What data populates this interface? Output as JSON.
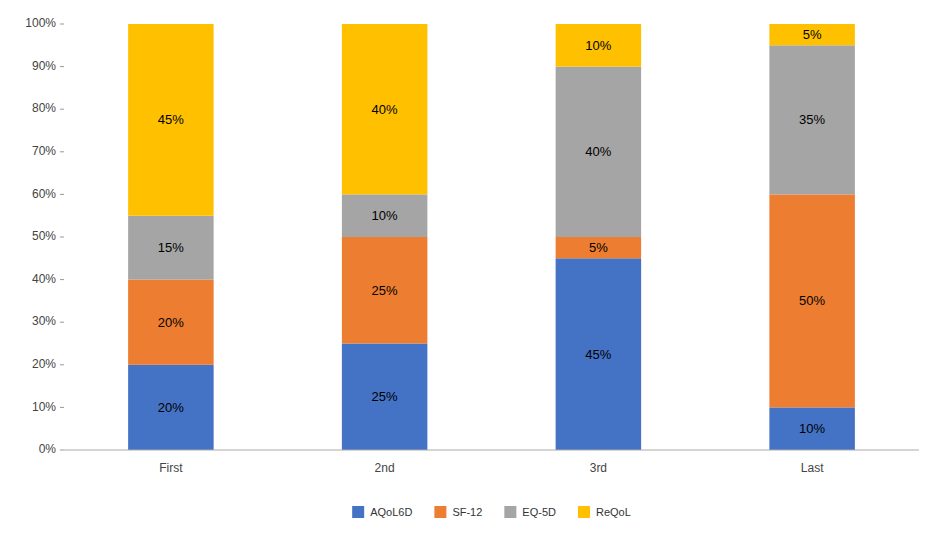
{
  "chart_data": {
    "type": "bar",
    "stacked": true,
    "data_labels": true,
    "grid": false,
    "legend": "bottom",
    "categories": [
      "First",
      "2nd",
      "3rd",
      "Last"
    ],
    "series": [
      {
        "name": "AQoL6D",
        "color": "#4472C4",
        "values": [
          20,
          25,
          45,
          10
        ],
        "value_labels": [
          "20%",
          "25%",
          "45%",
          "10%"
        ]
      },
      {
        "name": "SF-12",
        "color": "#ED7D31",
        "values": [
          20,
          25,
          5,
          50
        ],
        "value_labels": [
          "20%",
          "25%",
          "5%",
          "50%"
        ]
      },
      {
        "name": "EQ-5D",
        "color": "#A5A5A5",
        "values": [
          15,
          10,
          40,
          35
        ],
        "value_labels": [
          "15%",
          "10%",
          "40%",
          "35%"
        ]
      },
      {
        "name": "ReQoL",
        "color": "#FFC000",
        "values": [
          45,
          40,
          10,
          5
        ],
        "value_labels": [
          "45%",
          "40%",
          "10%",
          "5%"
        ]
      }
    ],
    "ylim": [
      0,
      100
    ],
    "yticks": [
      {
        "value": 0,
        "label": "0%"
      },
      {
        "value": 10,
        "label": "10%"
      },
      {
        "value": 20,
        "label": "20%"
      },
      {
        "value": 30,
        "label": "30%"
      },
      {
        "value": 40,
        "label": "40%"
      },
      {
        "value": 50,
        "label": "50%"
      },
      {
        "value": 60,
        "label": "60%"
      },
      {
        "value": 70,
        "label": "70%"
      },
      {
        "value": 80,
        "label": "80%"
      },
      {
        "value": 90,
        "label": "90%"
      },
      {
        "value": 100,
        "label": "100%"
      }
    ]
  }
}
